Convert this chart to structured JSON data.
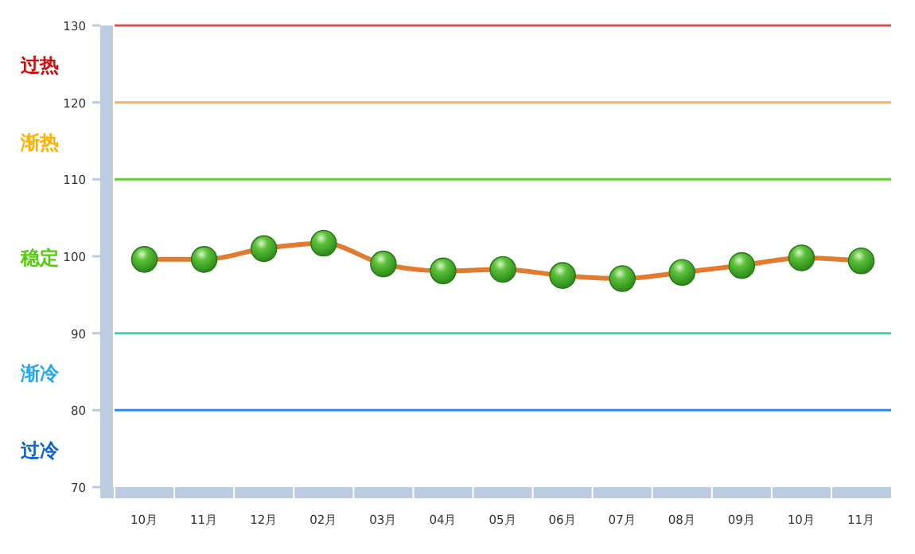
{
  "chart_data": {
    "type": "line",
    "categories": [
      "10月",
      "11月",
      "12月",
      "02月",
      "03月",
      "04月",
      "05月",
      "06月",
      "07月",
      "08月",
      "09月",
      "10月",
      "11月"
    ],
    "series": [
      {
        "color": "#e07b30",
        "values": [
          99.6,
          99.6,
          101,
          101.7,
          99,
          98.1,
          98.3,
          97.5,
          97.1,
          97.9,
          98.8,
          99.8,
          99.4
        ]
      }
    ],
    "ylim": [
      70,
      130
    ],
    "yticks": [
      70,
      80,
      90,
      100,
      110,
      120,
      130
    ],
    "grid": false,
    "marker": "circle",
    "line_style": "solid",
    "ref_lines": [
      {
        "axis": "y",
        "value": 130,
        "color": "#e05050"
      },
      {
        "axis": "y",
        "value": 120,
        "color": "#f5b060"
      },
      {
        "axis": "y",
        "value": 110,
        "color": "#66cc33"
      },
      {
        "axis": "y",
        "value": 90,
        "color": "#44ccbb"
      },
      {
        "axis": "y",
        "value": 80,
        "color": "#3388dd"
      }
    ],
    "annotations": [
      "过热",
      "渐热",
      "稳定",
      "渐冷",
      "过冷"
    ]
  }
}
